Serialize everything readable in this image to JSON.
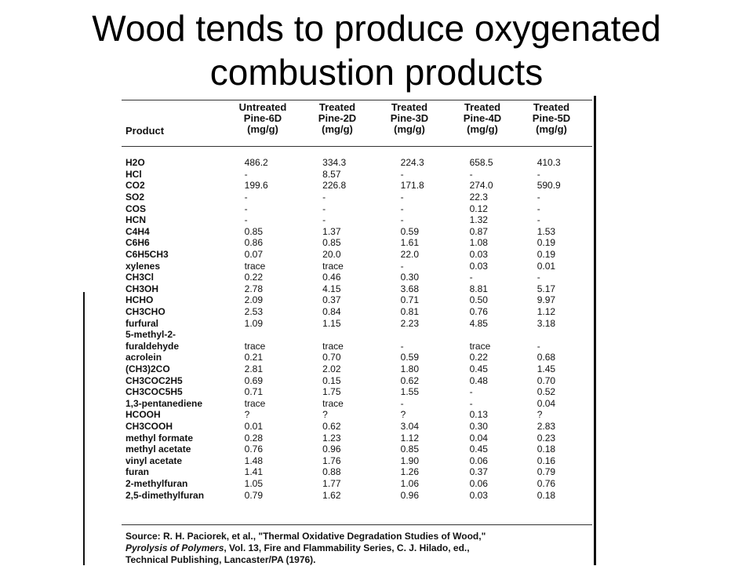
{
  "title": {
    "line1": "Wood tends to produce oxygenated",
    "line2": "combustion products"
  },
  "table": {
    "product_header": "Product",
    "columns": [
      {
        "line1": "Untreated",
        "line2": "Pine-6D",
        "line3": "(mg/g)"
      },
      {
        "line1": "Treated",
        "line2": "Pine-2D",
        "line3": "(mg/g)"
      },
      {
        "line1": "Treated",
        "line2": "Pine-3D",
        "line3": "(mg/g)"
      },
      {
        "line1": "Treated",
        "line2": "Pine-4D",
        "line3": "(mg/g)"
      },
      {
        "line1": "Treated",
        "line2": "Pine-5D",
        "line3": "(mg/g)"
      }
    ],
    "rows": [
      {
        "product": "H2O",
        "values": [
          "486.2",
          "334.3",
          "224.3",
          "658.5",
          "410.3"
        ]
      },
      {
        "product": "HCl",
        "values": [
          "-",
          "8.57",
          "-",
          "-",
          "-"
        ]
      },
      {
        "product": "CO2",
        "values": [
          "199.6",
          "226.8",
          "171.8",
          "274.0",
          "590.9"
        ]
      },
      {
        "product": "SO2",
        "values": [
          "-",
          "-",
          "-",
          "22.3",
          "-"
        ]
      },
      {
        "product": "COS",
        "values": [
          "-",
          "-",
          "-",
          "0.12",
          "-"
        ]
      },
      {
        "product": "HCN",
        "values": [
          "-",
          "-",
          "-",
          "1.32",
          "-"
        ]
      },
      {
        "product": "C4H4",
        "values": [
          "0.85",
          "1.37",
          "0.59",
          "0.87",
          "1.53"
        ]
      },
      {
        "product": "C6H6",
        "values": [
          "0.86",
          "0.85",
          "1.61",
          "1.08",
          "0.19"
        ]
      },
      {
        "product": "C6H5CH3",
        "values": [
          "0.07",
          "20.0",
          "22.0",
          "0.03",
          "0.19"
        ]
      },
      {
        "product": "xylenes",
        "values": [
          "trace",
          "trace",
          "-",
          "0.03",
          "0.01"
        ]
      },
      {
        "product": "CH3Cl",
        "values": [
          "0.22",
          "0.46",
          "0.30",
          "-",
          "-"
        ]
      },
      {
        "product": "CH3OH",
        "values": [
          "2.78",
          "4.15",
          "3.68",
          "8.81",
          "5.17"
        ]
      },
      {
        "product": "HCHO",
        "values": [
          "2.09",
          "0.37",
          "0.71",
          "0.50",
          "9.97"
        ]
      },
      {
        "product": "CH3CHO",
        "values": [
          "2.53",
          "0.84",
          "0.81",
          "0.76",
          "1.12"
        ]
      },
      {
        "product": "furfural",
        "values": [
          "1.09",
          "1.15",
          "2.23",
          "4.85",
          "3.18"
        ]
      },
      {
        "product": "5-methyl-2-",
        "values": [
          "",
          "",
          "",
          "",
          ""
        ]
      },
      {
        "product": "furaldehyde",
        "values": [
          "trace",
          "trace",
          "-",
          "trace",
          "-"
        ]
      },
      {
        "product": "acrolein",
        "values": [
          "0.21",
          "0.70",
          "0.59",
          "0.22",
          "0.68"
        ]
      },
      {
        "product": "(CH3)2CO",
        "values": [
          "2.81",
          "2.02",
          "1.80",
          "0.45",
          "1.45"
        ]
      },
      {
        "product": "CH3COC2H5",
        "values": [
          "0.69",
          "0.15",
          "0.62",
          "0.48",
          "0.70"
        ]
      },
      {
        "product": "CH3COC5H5",
        "values": [
          "0.71",
          "1.75",
          "1.55",
          "-",
          "0.52"
        ]
      },
      {
        "product": "1,3-pentanediene",
        "values": [
          "trace",
          "trace",
          "-",
          "-",
          "0.04"
        ]
      },
      {
        "product": "HCOOH",
        "values": [
          "?",
          "?",
          "?",
          "0.13",
          "?"
        ]
      },
      {
        "product": "CH3COOH",
        "values": [
          "0.01",
          "0.62",
          "3.04",
          "0.30",
          "2.83"
        ]
      },
      {
        "product": "methyl formate",
        "values": [
          "0.28",
          "1.23",
          "1.12",
          "0.04",
          "0.23"
        ]
      },
      {
        "product": "methyl acetate",
        "values": [
          "0.76",
          "0.96",
          "0.85",
          "0.45",
          "0.18"
        ]
      },
      {
        "product": "vinyl acetate",
        "values": [
          "1.48",
          "1.76",
          "1.90",
          "0.06",
          "0.16"
        ]
      },
      {
        "product": "furan",
        "values": [
          "1.41",
          "0.88",
          "1.26",
          "0.37",
          "0.79"
        ]
      },
      {
        "product": "2-methylfuran",
        "values": [
          "1.05",
          "1.77",
          "1.06",
          "0.06",
          "0.76"
        ]
      },
      {
        "product": "2,5-dimethylfuran",
        "values": [
          "0.79",
          "1.62",
          "0.96",
          "0.03",
          "0.18"
        ]
      }
    ],
    "source": {
      "line1": "Source: R. H. Paciorek, et al., \"Thermal Oxidative Degradation Studies of Wood,\"",
      "line2_italic": "Pyrolysis of Polymers",
      "line2_rest": ", Vol. 13, Fire and Flammability Series, C. J. Hilado, ed.,",
      "line3": "Technical Publishing, Lancaster/PA (1976)."
    }
  }
}
